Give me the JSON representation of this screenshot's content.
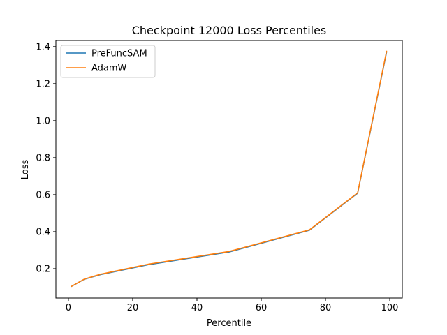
{
  "chart_data": {
    "type": "line",
    "title": "Checkpoint 12000 Loss Percentiles",
    "xlabel": "Percentile",
    "ylabel": "Loss",
    "xlim": [
      -3.9,
      103.9
    ],
    "ylim": [
      0.0415,
      1.4335
    ],
    "xticks": [
      0,
      20,
      40,
      60,
      80,
      100
    ],
    "yticks": [
      0.2,
      0.4,
      0.6,
      0.8,
      1.0,
      1.2,
      1.4
    ],
    "xtick_labels": [
      "0",
      "20",
      "40",
      "60",
      "80",
      "100"
    ],
    "ytick_labels": [
      "0.2",
      "0.4",
      "0.6",
      "0.8",
      "1.0",
      "1.2",
      "1.4"
    ],
    "grid": false,
    "legend_position": "top-left",
    "series": [
      {
        "name": "PreFuncSAM",
        "color": "#1f77b4",
        "x": [
          1,
          5,
          10,
          25,
          50,
          75,
          90,
          99
        ],
        "y": [
          0.105,
          0.143,
          0.168,
          0.222,
          0.29,
          0.408,
          0.608,
          1.37
        ]
      },
      {
        "name": "AdamW",
        "color": "#ff7f0e",
        "x": [
          1,
          5,
          10,
          25,
          50,
          75,
          90,
          99
        ],
        "y": [
          0.105,
          0.144,
          0.17,
          0.225,
          0.293,
          0.41,
          0.61,
          1.375
        ]
      }
    ]
  }
}
